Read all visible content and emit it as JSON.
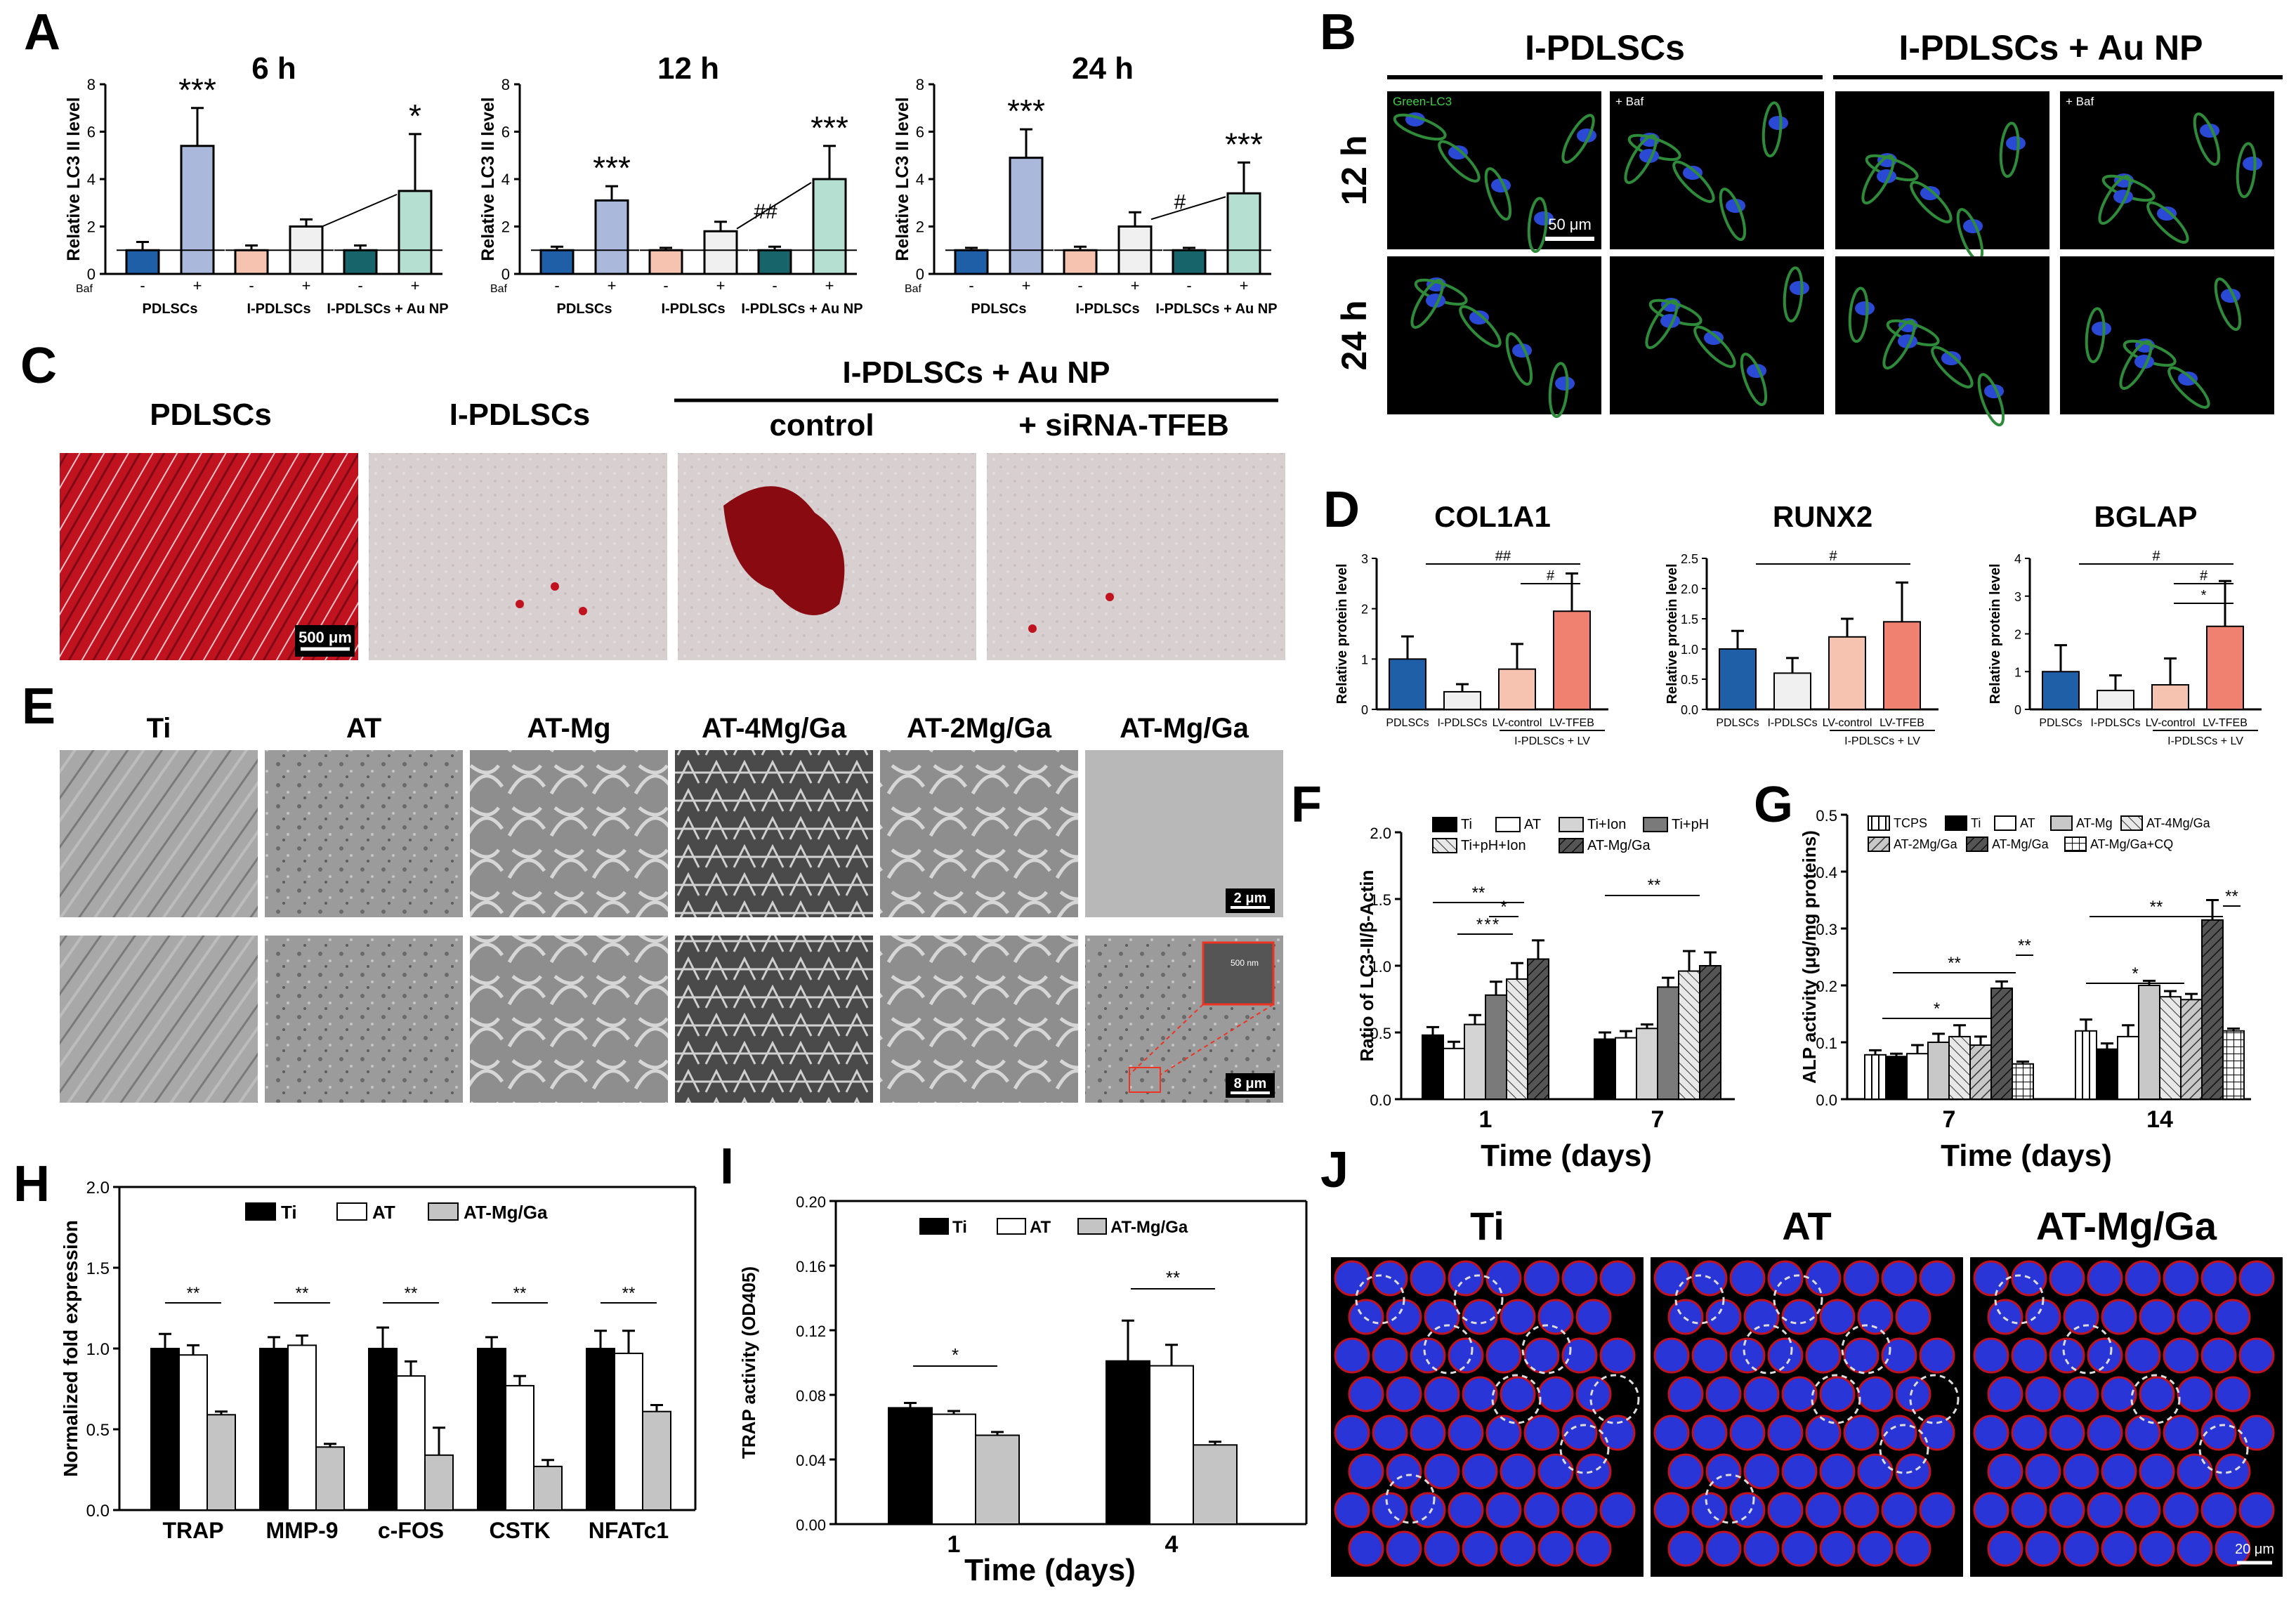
{
  "panels": {
    "A": {
      "letter": "A",
      "ylabel": "Relative LC3 II level",
      "treatment_label": "Baf",
      "groups": [
        "PDLSCs",
        "I-PDLSCs",
        "I-PDLSCs + Au NP"
      ],
      "ticks": [
        "-",
        "+"
      ],
      "yticks": [
        "0",
        "2",
        "4",
        "6",
        "8"
      ],
      "charts": [
        {
          "title": "6 h",
          "values": [
            1.0,
            5.4,
            1.0,
            2.0,
            1.0,
            3.5
          ],
          "errors": [
            0.35,
            1.6,
            0.2,
            0.3,
            0.2,
            2.4
          ],
          "marks": [
            "",
            "***",
            "",
            "",
            "",
            "*"
          ],
          "hash": ""
        },
        {
          "title": "12 h",
          "values": [
            1.0,
            3.1,
            1.0,
            1.8,
            1.0,
            4.0
          ],
          "errors": [
            0.15,
            0.6,
            0.1,
            0.4,
            0.15,
            1.4
          ],
          "marks": [
            "",
            "***",
            "",
            "",
            "",
            "***"
          ],
          "hash": "##"
        },
        {
          "title": "24 h",
          "values": [
            1.0,
            4.9,
            1.0,
            2.0,
            1.0,
            3.4
          ],
          "errors": [
            0.1,
            1.2,
            0.15,
            0.6,
            0.1,
            1.3
          ],
          "marks": [
            "",
            "***",
            "",
            "",
            "",
            "***"
          ],
          "hash": "#"
        }
      ],
      "colors": [
        "#1f5fa8",
        "#aab9db",
        "#f6c3b0",
        "#f0f0f0",
        "#17656a",
        "#b5dfd0"
      ]
    },
    "B": {
      "letter": "B",
      "columns": [
        "I-PDLSCs",
        "I-PDLSCs + Au NP"
      ],
      "rows": [
        "12 h",
        "24 h"
      ],
      "tile_labels": [
        "Green-LC3",
        "+ Baf",
        "",
        "+ Baf"
      ],
      "scale": "50 μm"
    },
    "C": {
      "letter": "C",
      "labels": [
        "PDLSCs",
        "I-PDLSCs"
      ],
      "group_label": "I-PDLSCs + Au NP",
      "sub_labels": [
        "control",
        "+ siRNA-TFEB"
      ],
      "scale": "500 μm"
    },
    "D": {
      "letter": "D",
      "ylabel": "Relative protein level",
      "categories": [
        "PDLSCs",
        "I-PDLSCs",
        "LV-control",
        "LV-TFEB"
      ],
      "group_label": "I-PDLSCs + LV",
      "colors": [
        "#1f5fa8",
        "#f0f0f0",
        "#f6c3b0",
        "#f08070"
      ],
      "charts": [
        {
          "title": "COL1A1",
          "values": [
            1.0,
            0.35,
            0.8,
            1.95
          ],
          "errors": [
            0.45,
            0.15,
            0.5,
            0.75
          ],
          "yticks": [
            "0",
            "1",
            "2",
            "3"
          ],
          "ymax": 3,
          "sig": [
            "##",
            "#"
          ]
        },
        {
          "title": "RUNX2",
          "values": [
            1.0,
            0.6,
            1.2,
            1.45
          ],
          "errors": [
            0.3,
            0.25,
            0.3,
            0.65
          ],
          "yticks": [
            "0.0",
            "0.5",
            "1.0",
            "1.5",
            "2.0",
            "2.5"
          ],
          "ymax": 2.5,
          "sig": [
            "#"
          ]
        },
        {
          "title": "BGLAP",
          "values": [
            1.0,
            0.5,
            0.65,
            2.2
          ],
          "errors": [
            0.7,
            0.4,
            0.7,
            1.2
          ],
          "yticks": [
            "0",
            "1",
            "2",
            "3",
            "4"
          ],
          "ymax": 4,
          "sig": [
            "#",
            "#",
            "*"
          ]
        }
      ]
    },
    "E": {
      "letter": "E",
      "labels": [
        "Ti",
        "AT",
        "AT-Mg",
        "AT-4Mg/Ga",
        "AT-2Mg/Ga",
        "AT-Mg/Ga"
      ],
      "scales": [
        "2 μm",
        "8 μm"
      ],
      "inset_scale": "500 nm"
    },
    "F": {
      "letter": "F",
      "ylabel": "Ratio of LC3-II/β-Actin",
      "xlabel": "Time (days)",
      "categories": [
        "1",
        "7"
      ],
      "legend": [
        "Ti",
        "AT",
        "Ti+Ion",
        "Ti+pH",
        "Ti+pH+Ion",
        "AT-Mg/Ga"
      ],
      "yticks": [
        "0.0",
        "0.5",
        "1.0",
        "1.5",
        "2.0"
      ],
      "series_values": [
        [
          0.48,
          0.38,
          0.56,
          0.78,
          0.9,
          1.05
        ],
        [
          0.45,
          0.46,
          0.53,
          0.84,
          0.96,
          1.0
        ]
      ],
      "series_errors": [
        [
          0.06,
          0.05,
          0.07,
          0.1,
          0.12,
          0.14
        ],
        [
          0.05,
          0.05,
          0.03,
          0.07,
          0.15,
          0.1
        ]
      ],
      "sig": [
        "**",
        "*",
        "*",
        "*",
        "*"
      ]
    },
    "G": {
      "letter": "G",
      "ylabel": "ALP activity (μg/mg proteins)",
      "xlabel": "Time (days)",
      "categories": [
        "7",
        "14"
      ],
      "legend": [
        "TCPS",
        "Ti",
        "AT",
        "AT-Mg",
        "AT-4Mg/Ga",
        "AT-2Mg/Ga",
        "AT-Mg/Ga",
        "AT-Mg/Ga+CQ"
      ],
      "yticks": [
        "0.0",
        "0.1",
        "0.2",
        "0.3",
        "0.4",
        "0.5"
      ],
      "series_values": [
        [
          0.078,
          0.075,
          0.08,
          0.1,
          0.11,
          0.095,
          0.195,
          0.062
        ],
        [
          0.12,
          0.088,
          0.11,
          0.2,
          0.18,
          0.175,
          0.315,
          0.12
        ]
      ],
      "series_errors": [
        [
          0.008,
          0.005,
          0.015,
          0.015,
          0.02,
          0.015,
          0.012,
          0.004
        ],
        [
          0.02,
          0.01,
          0.02,
          0.008,
          0.01,
          0.01,
          0.035,
          0.004
        ]
      ],
      "sig": [
        "**",
        "**",
        "*"
      ]
    },
    "H": {
      "letter": "H",
      "ylabel": "Normalized fold expression",
      "categories": [
        "TRAP",
        "MMP-9",
        "c-FOS",
        "CSTK",
        "NFATc1"
      ],
      "legend": [
        "Ti",
        "AT",
        "AT-Mg/Ga"
      ],
      "yticks": [
        "0.0",
        "0.5",
        "1.0",
        "1.5",
        "2.0"
      ],
      "series_values": [
        [
          1.0,
          0.96,
          0.59
        ],
        [
          1.0,
          1.02,
          0.39
        ],
        [
          1.0,
          0.83,
          0.34
        ],
        [
          1.0,
          0.77,
          0.27
        ],
        [
          1.0,
          0.97,
          0.61
        ]
      ],
      "series_errors": [
        [
          0.09,
          0.06,
          0.02
        ],
        [
          0.07,
          0.06,
          0.02
        ],
        [
          0.13,
          0.09,
          0.17
        ],
        [
          0.07,
          0.06,
          0.04
        ],
        [
          0.11,
          0.14,
          0.04
        ]
      ],
      "sig": "**"
    },
    "I": {
      "letter": "I",
      "ylabel": "TRAP activity (OD405)",
      "xlabel": "Time (days)",
      "categories": [
        "1",
        "4"
      ],
      "legend": [
        "Ti",
        "AT",
        "AT-Mg/Ga"
      ],
      "yticks": [
        "0.00",
        "0.04",
        "0.08",
        "0.12",
        "0.16",
        "0.20"
      ],
      "series_values": [
        [
          0.072,
          0.068,
          0.055
        ],
        [
          0.101,
          0.098,
          0.049
        ]
      ],
      "series_errors": [
        [
          0.003,
          0.002,
          0.002
        ],
        [
          0.025,
          0.013,
          0.002
        ]
      ],
      "sig": [
        "*",
        "**"
      ]
    },
    "J": {
      "letter": "J",
      "labels": [
        "Ti",
        "AT",
        "AT-Mg/Ga"
      ],
      "scale": "20 μm"
    }
  },
  "colors": {
    "black": "#000000",
    "white": "#ffffff",
    "grey": "#c4c4c4",
    "dark_grey": "#6f6f6f",
    "mid_grey": "#a0a0a0",
    "light_grey": "#d9d9d9",
    "confocal_bg": "#000000",
    "red_stain": "#c1121f",
    "sem_grey": "#9a9a9a"
  }
}
